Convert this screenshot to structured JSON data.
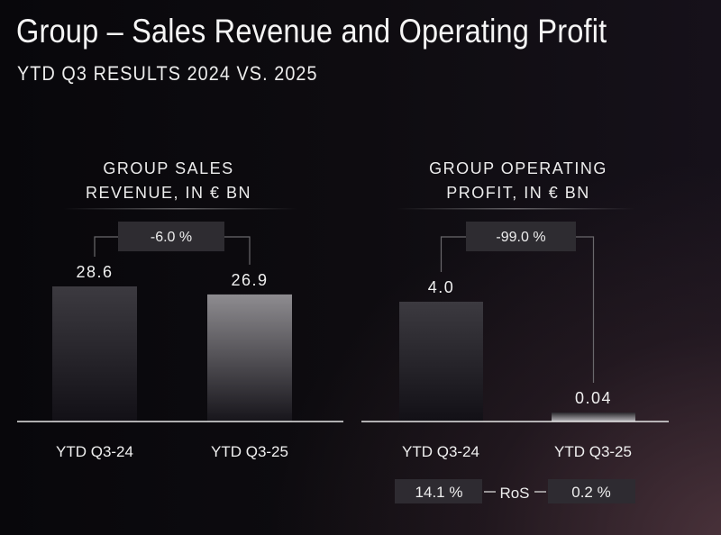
{
  "header": {
    "title": "Group – Sales Revenue and Operating Profit",
    "subtitle": "YTD Q3 RESULTS 2024 VS. 2025"
  },
  "colors": {
    "bar_prior": "#3a383d",
    "bar_current": "#8a888c",
    "delta_box": "#2e2c31",
    "ros_box": "#2e2b31",
    "axis": "#e6e6e6",
    "connector": "#6a686c"
  },
  "chart_data": [
    {
      "type": "bar",
      "title": "GROUP SALES REVENUE, IN € BN",
      "title_lines": [
        "GROUP SALES",
        "REVENUE, IN € BN"
      ],
      "categories": [
        "YTD Q3-24",
        "YTD Q3-25"
      ],
      "values": [
        28.6,
        26.9
      ],
      "value_labels": [
        "28.6",
        "26.9"
      ],
      "delta_label": "-6.0 %",
      "xlabel": "",
      "ylabel": "",
      "ylim": [
        0,
        28.6
      ],
      "grid": false
    },
    {
      "type": "bar",
      "title": "GROUP OPERATING PROFIT, IN € BN",
      "title_lines": [
        "GROUP OPERATING",
        "PROFIT, IN € BN"
      ],
      "categories": [
        "YTD Q3-24",
        "YTD Q3-25"
      ],
      "values": [
        4.0,
        0.04
      ],
      "value_labels": [
        "4.0",
        "0.04"
      ],
      "delta_label": "-99.0 %",
      "xlabel": "",
      "ylabel": "",
      "ylim": [
        0,
        4.0
      ],
      "grid": false,
      "ros": {
        "label": "RoS",
        "values": [
          "14.1 %",
          "0.2 %"
        ]
      }
    }
  ]
}
